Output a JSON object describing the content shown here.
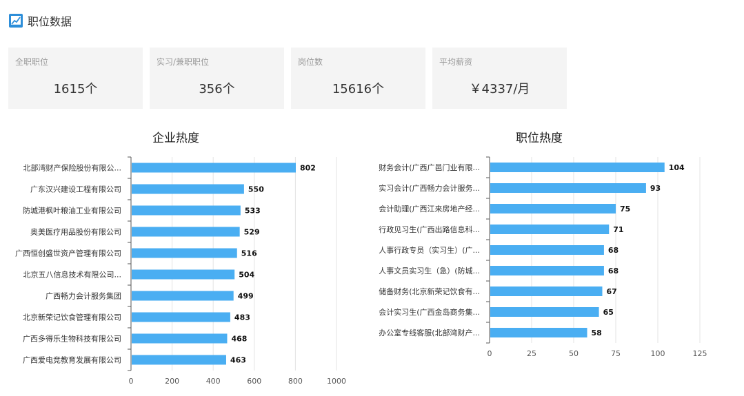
{
  "header": {
    "title": "职位数据"
  },
  "cards": [
    {
      "label": "全职职位",
      "value": "1615个"
    },
    {
      "label": "实习/兼职职位",
      "value": "356个"
    },
    {
      "label": "岗位数",
      "value": "15616个"
    },
    {
      "label": "平均薪资",
      "value": "￥4337/月"
    }
  ],
  "colors": {
    "bar": "#4aaef2",
    "card_bg": "#f4f4f4",
    "icon": "#2d8ed9"
  },
  "chart_data": [
    {
      "type": "bar",
      "orientation": "horizontal",
      "title": "企业热度",
      "categories": [
        "北部湾财产保险股份有限公...",
        "广东汉兴建设工程有限公司",
        "防城港枫叶粮油工业有限公司",
        "奥美医疗用品股份有限公司",
        "广西恒创盛世资产管理有限公司",
        "北京五八信息技术有限公司...",
        "广西畅力会计服务集团",
        "北京新荣记饮食管理有限公司",
        "广西多得乐生物科技有限公司",
        "广西爱电竞教育发展有限公司"
      ],
      "values": [
        802,
        550,
        533,
        529,
        516,
        504,
        499,
        483,
        468,
        463
      ],
      "xlim": [
        0,
        1000
      ],
      "ticks": [
        0,
        200,
        400,
        600,
        800,
        1000
      ],
      "grid": true
    },
    {
      "type": "bar",
      "orientation": "horizontal",
      "title": "职位热度",
      "categories": [
        "财务会计(广西广邑门业有限...",
        "实习会计(广西畅力会计服务...",
        "会计助理(广西江来房地产经...",
        "行政见习生(广西出路信息科...",
        "人事行政专员（实习生）(广...",
        "人事文员实习生（急）(防城...",
        "储备财务(北京新荣记饮食有...",
        "会计实习生(广西金岛商务集...",
        "办公室专线客服(北部湾财产..."
      ],
      "values": [
        104,
        93,
        75,
        71,
        68,
        68,
        67,
        65,
        58
      ],
      "xlim": [
        0,
        125
      ],
      "ticks": [
        0,
        25,
        50,
        75,
        100,
        125
      ],
      "grid": true
    }
  ]
}
